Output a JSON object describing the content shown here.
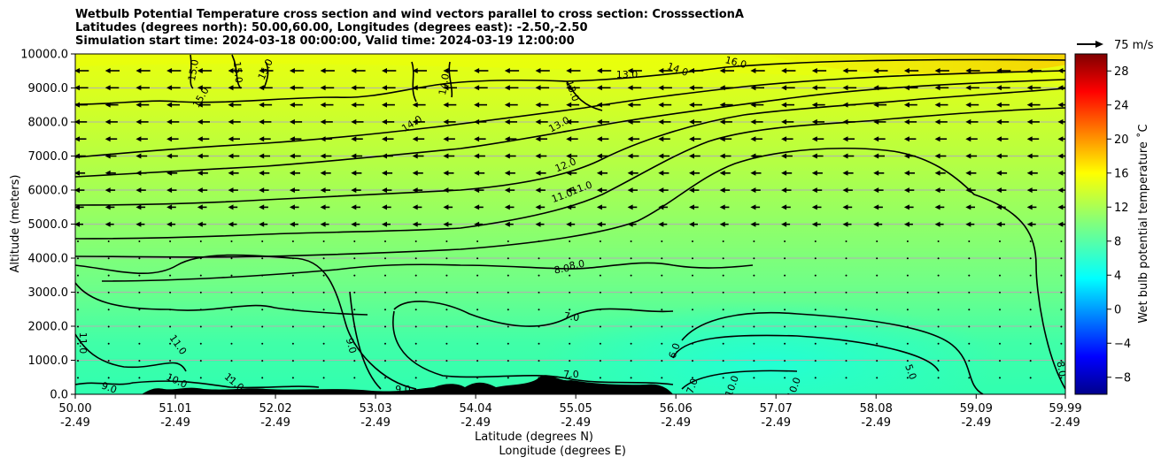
{
  "chart_data": {
    "type": "heatmap",
    "title_lines": [
      "Wetbulb Potential Temperature cross section and wind vectors parallel to cross section: CrosssectionA",
      "Latitudes (degrees north): 50.00,60.00, Longitudes (degrees east): -2.50,-2.50",
      "Simulation start time: 2024-03-18 00:00:00, Valid time: 2024-03-19 12:00:00"
    ],
    "xlabel_lines": [
      "Latitude (degrees N)",
      "Longitude (degrees E)"
    ],
    "ylabel": "Altitude (meters)",
    "x_ticks": [
      {
        "lat": "50.00",
        "lon": "-2.49"
      },
      {
        "lat": "51.01",
        "lon": "-2.49"
      },
      {
        "lat": "52.02",
        "lon": "-2.49"
      },
      {
        "lat": "53.03",
        "lon": "-2.49"
      },
      {
        "lat": "54.04",
        "lon": "-2.49"
      },
      {
        "lat": "55.05",
        "lon": "-2.49"
      },
      {
        "lat": "56.06",
        "lon": "-2.49"
      },
      {
        "lat": "57.07",
        "lon": "-2.49"
      },
      {
        "lat": "58.08",
        "lon": "-2.49"
      },
      {
        "lat": "59.09",
        "lon": "-2.49"
      },
      {
        "lat": "59.99",
        "lon": "-2.49"
      }
    ],
    "xlim": [
      50.0,
      59.99
    ],
    "y_ticks": [
      "0.0",
      "1000.0",
      "2000.0",
      "3000.0",
      "4000.0",
      "5000.0",
      "6000.0",
      "7000.0",
      "8000.0",
      "9000.0",
      "10000.0"
    ],
    "ylim": [
      0,
      10000
    ],
    "grid": "horizontal",
    "colorbar": {
      "label": "Wet bulb potential temperature ˚C",
      "range": [
        -10,
        30
      ],
      "ticks": [
        "−8",
        "−4",
        "0",
        "4",
        "8",
        "12",
        "16",
        "20",
        "24",
        "28"
      ],
      "colormap": "jet"
    },
    "quiver_key": {
      "label": "75 m/s"
    },
    "contours": [
      {
        "level": 7.0,
        "labels": [
          "7.0",
          "7.0",
          "7.0"
        ]
      },
      {
        "level": 8.0,
        "labels": [
          "8.0",
          "8.0",
          "8.0"
        ]
      },
      {
        "level": 9.0,
        "labels": [
          "9.0",
          "9.0",
          "9.0"
        ]
      },
      {
        "level": 10.0,
        "labels": [
          "10.0",
          "10.0",
          "10.0"
        ]
      },
      {
        "level": 11.0,
        "labels": [
          "11.0",
          "11.0",
          "11.0",
          "11.0",
          "11.0"
        ]
      },
      {
        "level": 12.0,
        "labels": [
          "12.0"
        ]
      },
      {
        "level": 13.0,
        "labels": [
          "13.0",
          "13.0",
          "13.0"
        ]
      },
      {
        "level": 14.0,
        "labels": [
          "14.0",
          "14.0",
          "14.0"
        ]
      },
      {
        "level": 15.0,
        "labels": [
          "15.0",
          "15.0",
          "15.0",
          "15.0"
        ]
      },
      {
        "level": 16.0,
        "labels": [
          "16.0"
        ]
      },
      {
        "level": 5.0,
        "labels": [
          "5.0"
        ]
      },
      {
        "level": 6.0,
        "labels": [
          "6.0"
        ]
      }
    ],
    "colors": {
      "terrain": "#000000",
      "grid": "#b0b0b0",
      "contour": "#000000"
    }
  }
}
